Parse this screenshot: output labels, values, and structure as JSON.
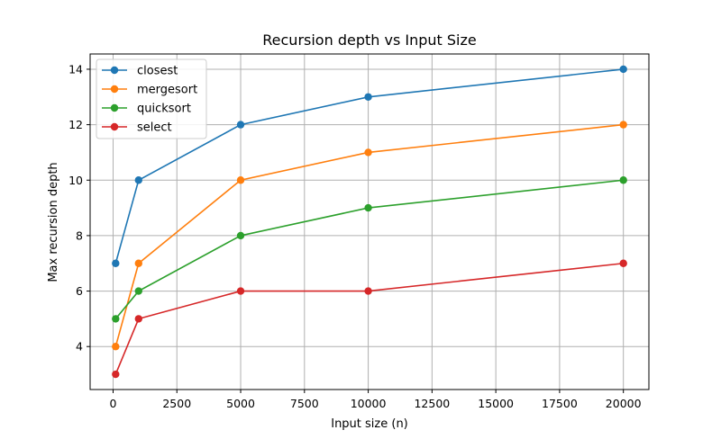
{
  "chart_data": {
    "type": "line",
    "title": "Recursion depth vs Input Size",
    "xlabel": "Input size (n)",
    "ylabel": "Max recursion depth",
    "x": [
      100,
      1000,
      5000,
      10000,
      20000
    ],
    "xlim": [
      -900,
      21000
    ],
    "ylim": [
      2.45,
      14.55
    ],
    "xticks": [
      0,
      2500,
      5000,
      7500,
      10000,
      12500,
      15000,
      17500,
      20000
    ],
    "yticks": [
      4,
      6,
      8,
      10,
      12,
      14
    ],
    "grid": true,
    "legend": "top-left",
    "series": [
      {
        "name": "closest",
        "color": "#1f77b4",
        "values": [
          7,
          10,
          12,
          13,
          14
        ]
      },
      {
        "name": "mergesort",
        "color": "#ff7f0e",
        "values": [
          4,
          7,
          10,
          11,
          12
        ]
      },
      {
        "name": "quicksort",
        "color": "#2ca02c",
        "values": [
          5,
          6,
          8,
          9,
          10
        ]
      },
      {
        "name": "select",
        "color": "#d62728",
        "values": [
          3,
          5,
          6,
          6,
          7
        ]
      }
    ]
  }
}
